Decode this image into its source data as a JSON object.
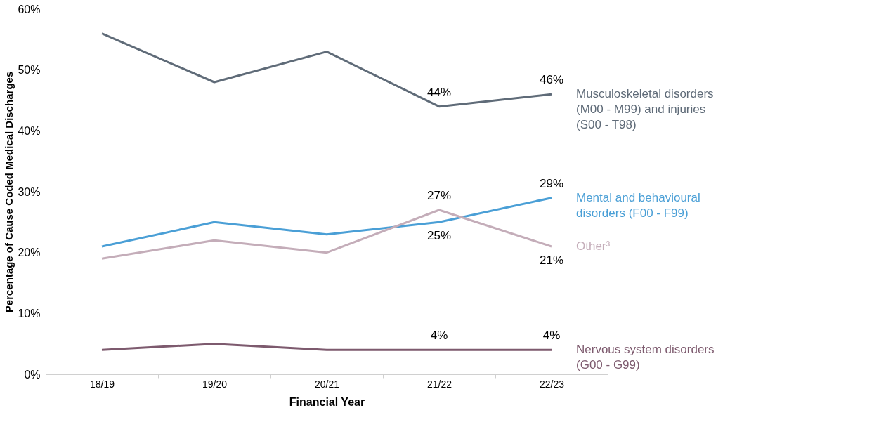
{
  "chart_data": {
    "type": "line",
    "xlabel": "Financial Year",
    "ylabel": "Percentage of Cause Coded Medical Discharges",
    "categories": [
      "18/19",
      "19/20",
      "20/21",
      "21/22",
      "22/23"
    ],
    "series": [
      {
        "name": "Musculoskeletal disorders\n(M00 - M99) and injuries\n(S00 - T98)",
        "color": "#5f6b78",
        "values": [
          56,
          48,
          53,
          44,
          46
        ],
        "value_labels": [
          null,
          null,
          null,
          "44%",
          "46%"
        ]
      },
      {
        "name": "Mental and behavioural\ndisorders  (F00 - F99)",
        "color": "#4a9fd6",
        "values": [
          21,
          25,
          23,
          25,
          29
        ],
        "value_labels": [
          null,
          null,
          null,
          "25%",
          "29%"
        ]
      },
      {
        "name": "Other³",
        "color": "#c4adb9",
        "values": [
          19,
          22,
          20,
          27,
          21
        ],
        "value_labels": [
          null,
          null,
          null,
          "27%",
          "21%"
        ]
      },
      {
        "name": "Nervous system disorders\n(G00 - G99)",
        "color": "#7d5a6e",
        "values": [
          4,
          5,
          4,
          4,
          4
        ],
        "value_labels": [
          null,
          null,
          null,
          "4%",
          "4%"
        ]
      }
    ],
    "ylim": [
      0,
      60
    ],
    "yticks": [
      {
        "value": 0,
        "label": "0%"
      },
      {
        "value": 10,
        "label": "10%"
      },
      {
        "value": 20,
        "label": "20%"
      },
      {
        "value": 30,
        "label": "30%"
      },
      {
        "value": 40,
        "label": "40%"
      },
      {
        "value": 50,
        "label": "50%"
      },
      {
        "value": 60,
        "label": "60%"
      }
    ],
    "grid": false,
    "legend": false,
    "marker": "none",
    "line_style": "solid"
  }
}
